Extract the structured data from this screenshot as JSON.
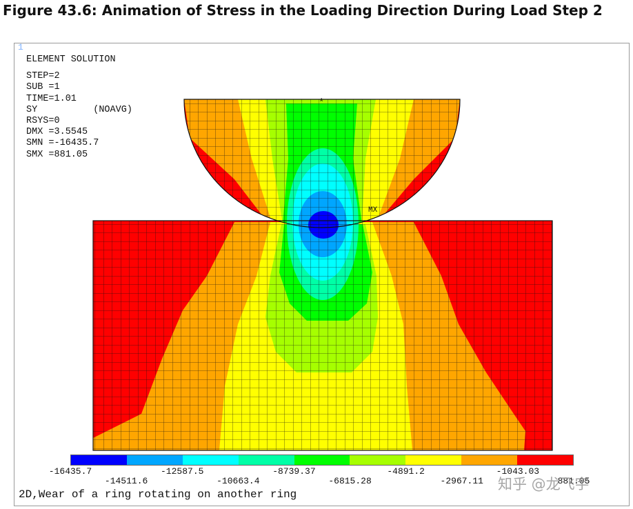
{
  "figure_caption": "Figure 43.6: Animation of Stress in the Loading Direction During Load Step 2",
  "window_number": "1",
  "solution_info": {
    "title": "ELEMENT SOLUTION",
    "step": "STEP=2",
    "sub": "SUB =1",
    "time": "TIME=1.01",
    "item": "SY          (NOAVG)",
    "rsys": "RSYS=0",
    "dmx": "DMX =3.5545",
    "smn": "SMN =-16435.7",
    "smx": "SMX =881.05"
  },
  "markers": {
    "top": "*",
    "right": "MX"
  },
  "contour_scale": {
    "colors": [
      "#0000ff",
      "#00a6ff",
      "#00ffff",
      "#00ffa6",
      "#00ff00",
      "#a6ff00",
      "#ffff00",
      "#ffa600",
      "#ff0000"
    ],
    "labels": [
      "-16435.7",
      "-14511.6",
      "-12587.5",
      "-10663.4",
      "-8739.37",
      "-6815.28",
      "-4891.2",
      "-2967.11",
      "-1043.03",
      "881.05"
    ]
  },
  "model_title": "2D,Wear of a ring rotating on another ring",
  "watermark": "知乎 @龙飞宇",
  "model_colors": {
    "red": "#ff0000",
    "orange": "#ffa600",
    "yellow": "#ffff00",
    "lime": "#a6ff00",
    "green": "#00ff00",
    "aqua": "#00ffa6",
    "cyan": "#00ffff",
    "sky": "#00a6ff",
    "blue": "#0000ff",
    "mesh": "#111111"
  }
}
